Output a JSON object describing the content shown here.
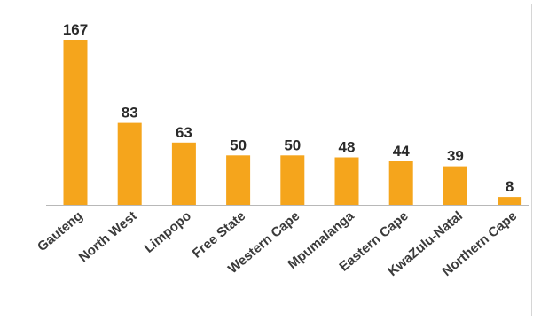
{
  "chart_data": {
    "type": "bar",
    "title": "",
    "xlabel": "",
    "ylabel": "",
    "categories": [
      "Gauteng",
      "North West",
      "Limpopo",
      "Free State",
      "Western Cape",
      "Mpumalanga",
      "Eastern Cape",
      "KwaZulu-Natal",
      "Northern Cape"
    ],
    "values": [
      167,
      83,
      63,
      50,
      50,
      48,
      44,
      39,
      8
    ],
    "ylim": [
      0,
      167
    ],
    "grid": false,
    "legend": "none",
    "bar_color": "#F5A51C",
    "axis_color": "#b8b8b8"
  }
}
